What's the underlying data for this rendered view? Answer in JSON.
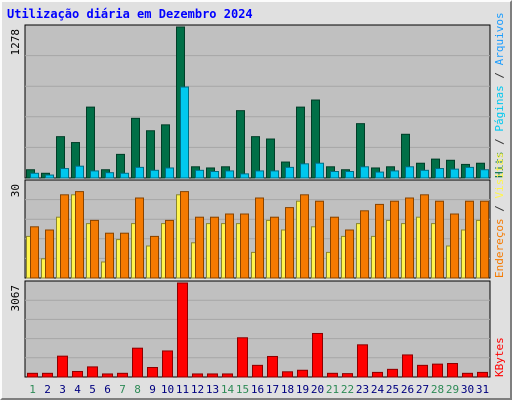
{
  "chart_data": {
    "type": "bar",
    "title": "Utilização diária em Dezembro 2024",
    "days": [
      "1",
      "2",
      "3",
      "4",
      "5",
      "6",
      "7",
      "8",
      "9",
      "10",
      "11",
      "12",
      "13",
      "14",
      "15",
      "16",
      "17",
      "18",
      "19",
      "20",
      "21",
      "22",
      "23",
      "24",
      "25",
      "26",
      "27",
      "28",
      "29",
      "30",
      "31"
    ],
    "weekend_days": [
      "1",
      "7",
      "8",
      "14",
      "15",
      "21",
      "22",
      "28",
      "29"
    ],
    "panels": [
      {
        "name": "top",
        "max_label": "1278",
        "ymax": 1278,
        "series": [
          {
            "name": "Hits",
            "color": "#006f47",
            "values": [
              70,
              40,
              350,
              300,
              600,
              70,
              200,
              505,
              400,
              450,
              1278,
              95,
              85,
              95,
              570,
              350,
              330,
              135,
              600,
              660,
              95,
              70,
              460,
              85,
              95,
              370,
              125,
              160,
              150,
              115,
              125
            ]
          },
          {
            "name": "Páginas",
            "color": "#00c8ef",
            "values": [
              40,
              25,
              80,
              100,
              60,
              45,
              40,
              90,
              65,
              85,
              770,
              65,
              55,
              60,
              35,
              60,
              60,
              90,
              120,
              125,
              55,
              55,
              95,
              50,
              60,
              95,
              65,
              80,
              75,
              90,
              70
            ]
          },
          {
            "name": "Arquivos",
            "color": "#1c9dfe",
            "values": []
          }
        ]
      },
      {
        "name": "middle",
        "max_label": "30",
        "ymax": 30,
        "series": [
          {
            "name": "Visitas",
            "color": "#fff44d",
            "values": [
              13,
              6,
              19,
              26,
              17,
              5,
              12,
              17,
              10,
              17,
              26,
              11,
              17,
              17,
              17,
              8,
              18,
              15,
              24,
              16,
              8,
              13,
              17,
              13,
              18,
              17,
              19,
              17,
              10,
              15,
              18
            ]
          },
          {
            "name": "Endereços",
            "color": "#f57a00",
            "values": [
              16,
              15,
              26,
              27,
              18,
              14,
              14,
              25,
              13,
              18,
              27,
              19,
              19,
              20,
              20,
              25,
              19,
              22,
              26,
              24,
              19,
              15,
              21,
              23,
              24,
              25,
              26,
              24,
              20,
              24,
              24
            ]
          }
        ]
      },
      {
        "name": "bottom",
        "max_label": "3067",
        "ymax": 3067,
        "series": [
          {
            "name": "KBytes",
            "color": "#ff0000",
            "values": [
              120,
              120,
              680,
              180,
              330,
              100,
              120,
              940,
              310,
              850,
              3067,
              100,
              100,
              100,
              1280,
              380,
              670,
              170,
              220,
              1420,
              120,
              110,
              1050,
              150,
              250,
              720,
              380,
              420,
              440,
              120,
              150
            ]
          }
        ]
      }
    ]
  }
}
